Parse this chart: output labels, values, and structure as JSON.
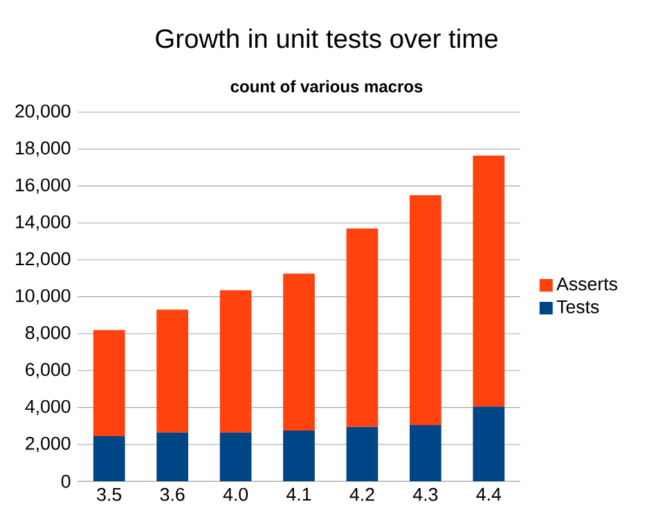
{
  "chart_data": {
    "type": "bar",
    "title": "Growth in unit tests over time",
    "subtitle": "count of various macros",
    "categories": [
      "3.5",
      "3.6",
      "4.0",
      "4.1",
      "4.2",
      "4.3",
      "4.4"
    ],
    "stacked": true,
    "series": [
      {
        "name": "Tests",
        "color": "#004586",
        "values": [
          2450,
          2650,
          2650,
          2750,
          2950,
          3050,
          4050
        ]
      },
      {
        "name": "Asserts",
        "color": "#ff420e",
        "values": [
          5750,
          6650,
          7700,
          8500,
          10750,
          12450,
          13600
        ]
      }
    ],
    "ylim": [
      0,
      20000
    ],
    "yticks": [
      {
        "value": 0,
        "label": "0"
      },
      {
        "value": 2000,
        "label": "2,000"
      },
      {
        "value": 4000,
        "label": "4,000"
      },
      {
        "value": 6000,
        "label": "6,000"
      },
      {
        "value": 8000,
        "label": "8,000"
      },
      {
        "value": 10000,
        "label": "10,000"
      },
      {
        "value": 12000,
        "label": "12,000"
      },
      {
        "value": 14000,
        "label": "14,000"
      },
      {
        "value": 16000,
        "label": "16,000"
      },
      {
        "value": 18000,
        "label": "18,000"
      },
      {
        "value": 20000,
        "label": "20,000"
      }
    ],
    "grid": "y",
    "legend": "right"
  }
}
